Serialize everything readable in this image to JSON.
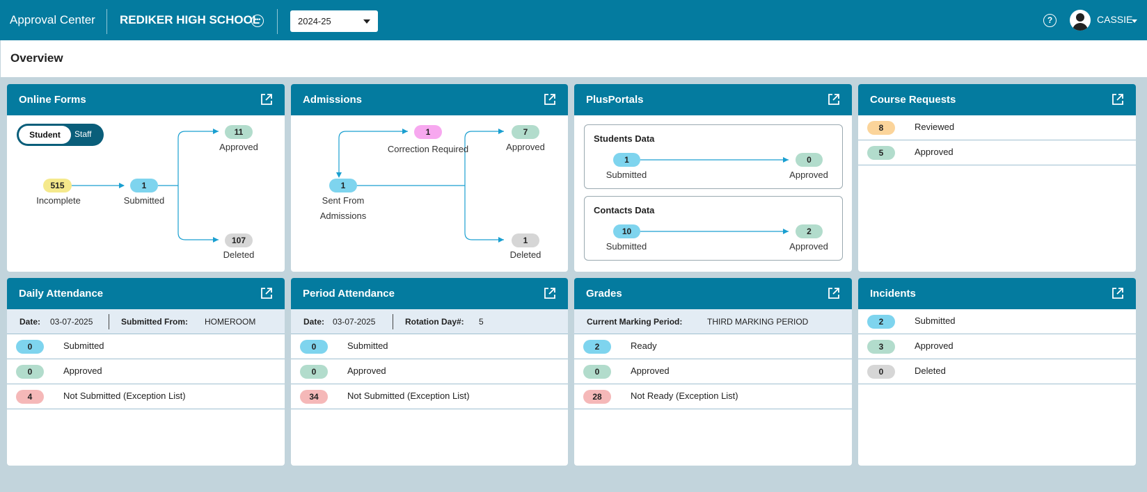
{
  "header": {
    "app_title": "Approval Center",
    "school_name": "REDIKER HIGH SCHOOL",
    "school_year": "2024-25",
    "user_name": "CASSIE"
  },
  "page": {
    "title": "Overview"
  },
  "online_forms": {
    "title": "Online Forms",
    "toggle": {
      "selected": "Student",
      "other": "Staff"
    },
    "incomplete": {
      "count": "515",
      "label": "Incomplete"
    },
    "submitted": {
      "count": "1",
      "label": "Submitted"
    },
    "approved": {
      "count": "11",
      "label": "Approved"
    },
    "deleted": {
      "count": "107",
      "label": "Deleted"
    }
  },
  "admissions": {
    "title": "Admissions",
    "correction": {
      "count": "1",
      "label": "Correction Required"
    },
    "sent": {
      "count": "1",
      "label_line1": "Sent From",
      "label_line2": "Admissions"
    },
    "approved": {
      "count": "7",
      "label": "Approved"
    },
    "deleted": {
      "count": "1",
      "label": "Deleted"
    }
  },
  "plusportals": {
    "title": "PlusPortals",
    "students": {
      "title": "Students Data",
      "submitted": "1",
      "approved": "0",
      "submitted_label": "Submitted",
      "approved_label": "Approved"
    },
    "contacts": {
      "title": "Contacts Data",
      "submitted": "10",
      "approved": "2",
      "submitted_label": "Submitted",
      "approved_label": "Approved"
    }
  },
  "course_requests": {
    "title": "Course Requests",
    "rows": [
      {
        "count": "8",
        "label": "Reviewed"
      },
      {
        "count": "5",
        "label": "Approved"
      }
    ]
  },
  "daily_attendance": {
    "title": "Daily Attendance",
    "date_label": "Date:",
    "date": "03-07-2025",
    "from_label": "Submitted From:",
    "from": "HOMEROOM",
    "rows": [
      {
        "count": "0",
        "label": "Submitted"
      },
      {
        "count": "0",
        "label": "Approved"
      },
      {
        "count": "4",
        "label": "Not Submitted (Exception List)"
      }
    ]
  },
  "period_attendance": {
    "title": "Period Attendance",
    "date_label": "Date:",
    "date": "03-07-2025",
    "rotation_label": "Rotation Day#:",
    "rotation": "5",
    "rows": [
      {
        "count": "0",
        "label": "Submitted"
      },
      {
        "count": "0",
        "label": "Approved"
      },
      {
        "count": "34",
        "label": "Not Submitted (Exception List)"
      }
    ]
  },
  "grades": {
    "title": "Grades",
    "period_label": "Current Marking Period:",
    "period": "THIRD MARKING PERIOD",
    "rows": [
      {
        "count": "2",
        "label": "Ready"
      },
      {
        "count": "0",
        "label": "Approved"
      },
      {
        "count": "28",
        "label": "Not Ready (Exception List)"
      }
    ]
  },
  "incidents": {
    "title": "Incidents",
    "rows": [
      {
        "count": "2",
        "label": "Submitted"
      },
      {
        "count": "3",
        "label": "Approved"
      },
      {
        "count": "0",
        "label": "Deleted"
      }
    ]
  },
  "colors": {
    "primary": "#047b9f",
    "submitted": "#7ed4ee",
    "approved": "#b2dccc",
    "incomplete": "#f5e98c",
    "deleted": "#d6d6d6",
    "correction": "#f7a8ef",
    "exception": "#f5b8b8",
    "reviewed": "#fbd49a"
  }
}
